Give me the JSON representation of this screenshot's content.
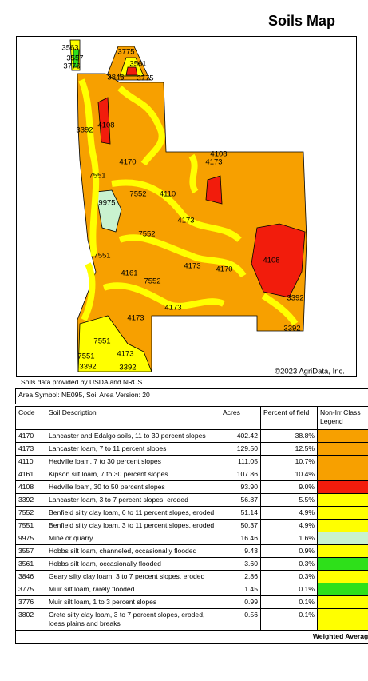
{
  "header": {
    "title": "Soils Map"
  },
  "map": {
    "labels": [
      "3563",
      "3557",
      "3776",
      "3775",
      "3561",
      "3846",
      "3775",
      "3392",
      "4108",
      "4170",
      "4108",
      "4173",
      "7551",
      "7552",
      "4110",
      "9975",
      "4173",
      "7552",
      "7551",
      "4173",
      "4170",
      "4108",
      "4161",
      "7552",
      "3392",
      "4173",
      "4173",
      "3392",
      "7551",
      "4173",
      "7551",
      "3392",
      "3392"
    ],
    "copyright": "©2023 AgriData, Inc."
  },
  "source": "Soils data provided by USDA and NRCS.",
  "table": {
    "caption": "Area Symbol: NE095, Soil Area Version: 20",
    "headers": [
      "Code",
      "Soil Description",
      "Acres",
      "Percent of field",
      "Non-Irr Class Legend"
    ],
    "rows": [
      {
        "code": "4170",
        "description": "Lancaster and Edalgo soils, 11 to 30 percent slopes",
        "acres": "402.42",
        "percent": "38.8%",
        "color": "#f7a000"
      },
      {
        "code": "4173",
        "description": "Lancaster loam, 7 to 11 percent slopes",
        "acres": "129.50",
        "percent": "12.5%",
        "color": "#f7a000"
      },
      {
        "code": "4110",
        "description": "Hedville loam, 7 to 30 percent slopes",
        "acres": "111.05",
        "percent": "10.7%",
        "color": "#f7a000"
      },
      {
        "code": "4161",
        "description": "Kipson silt loam, 7 to 30 percent slopes",
        "acres": "107.86",
        "percent": "10.4%",
        "color": "#f7a000"
      },
      {
        "code": "4108",
        "description": "Hedville loam, 30 to 50 percent slopes",
        "acres": "93.90",
        "percent": "9.0%",
        "color": "#f21c0c"
      },
      {
        "code": "3392",
        "description": "Lancaster loam, 3 to 7 percent slopes, eroded",
        "acres": "56.87",
        "percent": "5.5%",
        "color": "#ffff00"
      },
      {
        "code": "7552",
        "description": "Benfield silty clay loam, 6 to 11 percent slopes, eroded",
        "acres": "51.14",
        "percent": "4.9%",
        "color": "#ffff00"
      },
      {
        "code": "7551",
        "description": "Benfield silty clay loam, 3 to 11 percent slopes, eroded",
        "acres": "50.37",
        "percent": "4.9%",
        "color": "#ffff00"
      },
      {
        "code": "9975",
        "description": "Mine or quarry",
        "acres": "16.46",
        "percent": "1.6%",
        "color": "#c9f2cf"
      },
      {
        "code": "3557",
        "description": "Hobbs silt loam, channeled, occasionally flooded",
        "acres": "9.43",
        "percent": "0.9%",
        "color": "#ffff00"
      },
      {
        "code": "3561",
        "description": "Hobbs silt loam, occasionally flooded",
        "acres": "3.60",
        "percent": "0.3%",
        "color": "#2ee01a"
      },
      {
        "code": "3846",
        "description": "Geary silty clay loam, 3 to 7 percent slopes, eroded",
        "acres": "2.86",
        "percent": "0.3%",
        "color": "#ffff00"
      },
      {
        "code": "3775",
        "description": "Muir silt loam, rarely flooded",
        "acres": "1.45",
        "percent": "0.1%",
        "color": "#2ee01a"
      },
      {
        "code": "3776",
        "description": "Muir silt loam, 1 to 3 percent slopes",
        "acres": "0.99",
        "percent": "0.1%",
        "color": "#ffff00"
      },
      {
        "code": "3802",
        "description": "Crete silty clay loam, 3 to 7 percent slopes, eroded, loess plains and breaks",
        "acres": "0.56",
        "percent": "0.1%",
        "color": "#ffff00"
      }
    ],
    "footer": "Weighted Average"
  }
}
